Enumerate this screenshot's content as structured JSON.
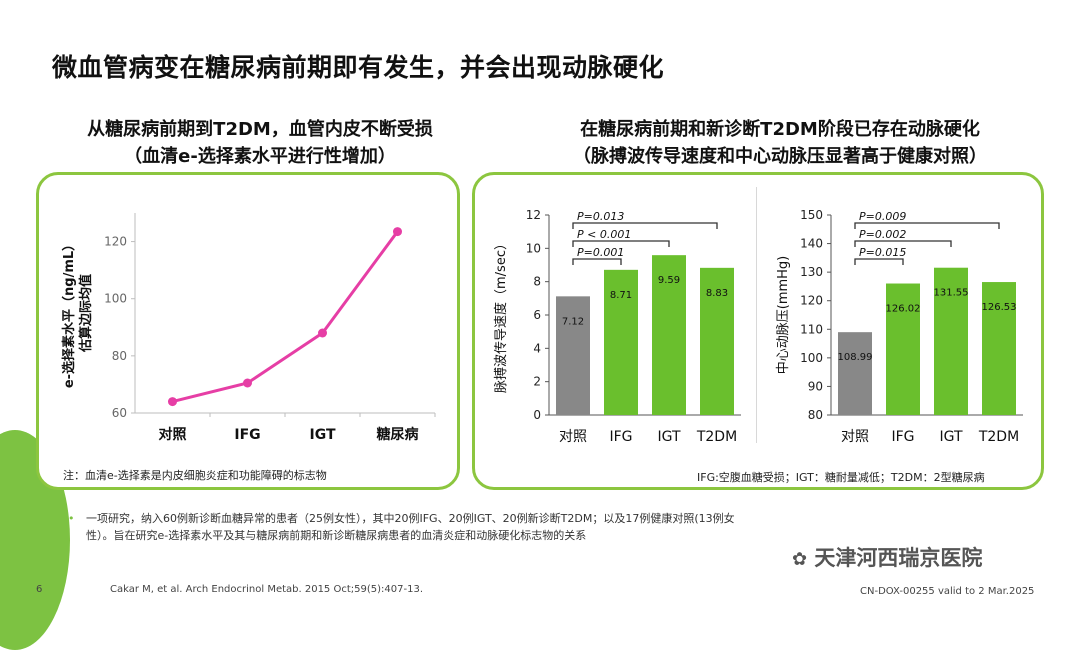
{
  "title": "微血管病变在糖尿病前期即有发生，并会出现动脉硬化",
  "left": {
    "subtitle_line1": "从糖尿病前期到T2DM，血管内皮不断受损",
    "subtitle_line2": "（血清e-选择素水平进行性增加）",
    "note": "注：血清e-选择素是内皮细胞炎症和功能障碍的标志物"
  },
  "right": {
    "subtitle_line1": "在糖尿病前期和新诊断T2DM阶段已存在动脉硬化",
    "subtitle_line2": "（脉搏波传导速度和中心动脉压显著高于健康对照）",
    "note": "IFG:空腹血糖受损；IGT：糖耐量减低；T2DM：2型糖尿病"
  },
  "chart_data": [
    {
      "type": "line",
      "categories": [
        "对照",
        "IFG",
        "IGT",
        "糖尿病"
      ],
      "values": [
        64,
        70.5,
        88,
        123.5
      ],
      "ylabel_line1": "e-选择素水平（ng/mL）",
      "ylabel_line2": "估算边际均值",
      "ylim": [
        60,
        130
      ],
      "yticks": [
        60,
        80,
        100,
        120
      ],
      "color": "#e63ea5"
    },
    {
      "type": "bar",
      "categories": [
        "对照",
        "IFG",
        "IGT",
        "T2DM"
      ],
      "values": [
        7.12,
        8.71,
        9.59,
        8.83
      ],
      "labels": [
        "7.12",
        "8.71",
        "9.59",
        "8.83"
      ],
      "ylabel": "脉搏波传导速度（m/sec）",
      "ylim": [
        0,
        12
      ],
      "yticks": [
        0,
        2,
        4,
        6,
        8,
        10,
        12
      ],
      "colors": [
        "#888888",
        "#6abf2d",
        "#6abf2d",
        "#6abf2d"
      ],
      "comparisons": [
        {
          "label": "P=0.001",
          "from": 0,
          "to": 1
        },
        {
          "label": "P < 0.001",
          "from": 0,
          "to": 2
        },
        {
          "label": "P=0.013",
          "from": 0,
          "to": 3
        }
      ]
    },
    {
      "type": "bar",
      "categories": [
        "对照",
        "IFG",
        "IGT",
        "T2DM"
      ],
      "values": [
        108.99,
        126.02,
        131.55,
        126.53
      ],
      "labels": [
        "108.99",
        "126.02",
        "131.55",
        "126.53"
      ],
      "ylabel": "中心动脉压(mmHg)",
      "ylim": [
        80,
        150
      ],
      "yticks": [
        80,
        90,
        100,
        110,
        120,
        130,
        140,
        150
      ],
      "colors": [
        "#888888",
        "#6abf2d",
        "#6abf2d",
        "#6abf2d"
      ],
      "comparisons": [
        {
          "label": "P=0.015",
          "from": 0,
          "to": 1
        },
        {
          "label": "P=0.002",
          "from": 0,
          "to": 2
        },
        {
          "label": "P=0.009",
          "from": 0,
          "to": 3
        }
      ]
    }
  ],
  "bullet": "一项研究，纳入60例新诊断血糖异常的患者（25例女性），其中20例IFG、20例IGT、20例新诊断T2DM；以及17例健康对照(13例女性）。旨在研究e-选择素水平及其与糖尿病前期和新诊断糖尿病患者的血清炎症和动脉硬化标志物的关系",
  "watermark": "天津河西瑞京医院",
  "page_number": "6",
  "citation": "Cakar M, et al. Arch Endocrinol Metab. 2015 Oct;59(5):407-13.",
  "doc_code": "CN-DOX-00255 valid to 2 Mar.2025"
}
